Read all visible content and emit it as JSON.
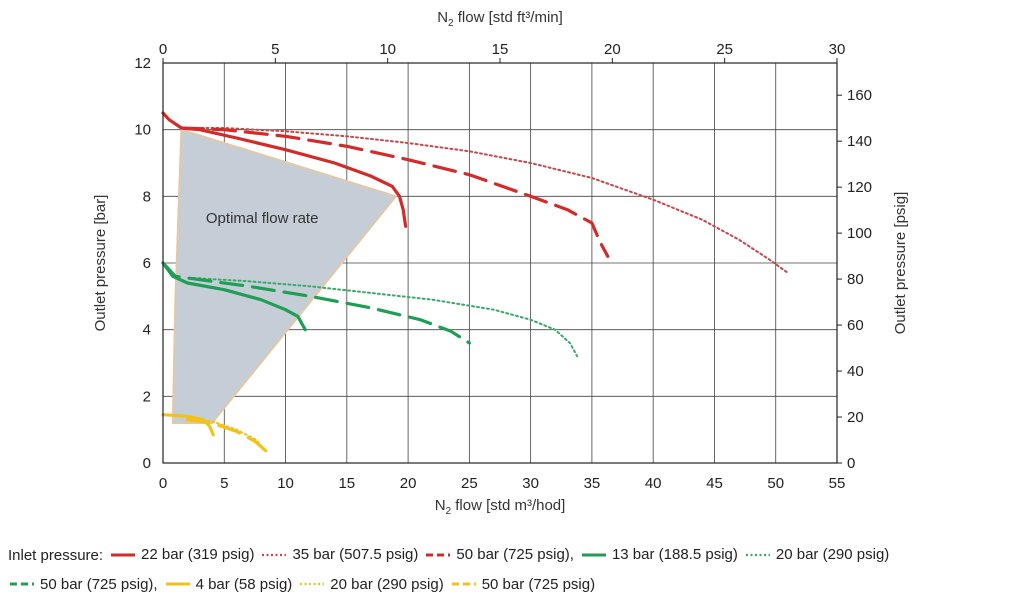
{
  "chart_data": {
    "type": "line",
    "top_axis": {
      "label_main": "N",
      "label_sub": "2",
      "label_rest": " flow [std ft³/min]",
      "range": [
        0,
        30
      ],
      "ticks": [
        "0",
        "5",
        "10",
        "15",
        "20",
        "25",
        "30"
      ]
    },
    "x_axis": {
      "label_main": "N",
      "label_sub": "2",
      "label_rest": " flow [std m³/hod]",
      "range": [
        0,
        55
      ],
      "ticks": [
        "0",
        "5",
        "10",
        "15",
        "20",
        "25",
        "30",
        "35",
        "40",
        "45",
        "50",
        "55"
      ]
    },
    "y_axis_left": {
      "label": "Outlet pressure [bar]",
      "range": [
        0,
        12
      ],
      "ticks": [
        "0",
        "2",
        "4",
        "6",
        "8",
        "10",
        "12"
      ]
    },
    "y_axis_right": {
      "label": "Outlet pressure [psig]",
      "range": [
        0,
        174
      ],
      "ticks": [
        "0",
        "20",
        "40",
        "60",
        "80",
        "100",
        "120",
        "140",
        "160"
      ]
    },
    "grid": true,
    "region": {
      "label": "Optimal flow rate",
      "color": "#c5ced6",
      "border": "#e3c8a8",
      "points": [
        [
          0.8,
          1.2
        ],
        [
          1.0,
          4.8
        ],
        [
          1.5,
          10.0
        ],
        [
          19.0,
          8.0
        ],
        [
          4.0,
          1.2
        ]
      ]
    },
    "series": [
      {
        "name": "22 bar (319 psig)",
        "color": "#d42a2a",
        "style": "solid",
        "x": [
          0,
          0.5,
          1.5,
          3,
          6,
          10,
          14,
          17,
          18.7,
          19.3,
          19.6,
          19.8
        ],
        "y": [
          10.5,
          10.3,
          10.05,
          10.0,
          9.75,
          9.4,
          9.0,
          8.6,
          8.3,
          8.0,
          7.6,
          7.1
        ]
      },
      {
        "name": "35 bar (507.5 psig)",
        "color": "#c8474a",
        "style": "dotted",
        "x": [
          1.5,
          5,
          10,
          15,
          20,
          25,
          30,
          35,
          40,
          44,
          47,
          49.5,
          51
        ],
        "y": [
          10.05,
          10.05,
          9.95,
          9.8,
          9.6,
          9.35,
          9.0,
          8.55,
          7.9,
          7.3,
          6.7,
          6.1,
          5.7
        ]
      },
      {
        "name": "50 bar (725 psig)",
        "color": "#d42a2a",
        "style": "dashed",
        "x": [
          1.5,
          5,
          10,
          15,
          20,
          25,
          30,
          33,
          35,
          35.7,
          36.3
        ],
        "y": [
          10.05,
          10.0,
          9.8,
          9.5,
          9.1,
          8.65,
          8.0,
          7.6,
          7.2,
          6.6,
          6.2
        ]
      },
      {
        "name": "13 bar (188.5 psig)",
        "color": "#1f9e55",
        "style": "solid",
        "x": [
          0,
          0.8,
          2,
          5,
          8,
          10,
          11,
          11.6
        ],
        "y": [
          6.0,
          5.6,
          5.4,
          5.2,
          4.9,
          4.6,
          4.4,
          4.0
        ]
      },
      {
        "name": "20 bar (290 psig)",
        "color": "#3aaa6a",
        "style": "dotted",
        "x": [
          2.5,
          7,
          12,
          17,
          22,
          27,
          30,
          32,
          33.2,
          33.8
        ],
        "y": [
          5.55,
          5.45,
          5.3,
          5.1,
          4.9,
          4.6,
          4.3,
          4.0,
          3.6,
          3.2
        ]
      },
      {
        "name": "50 bar (725 psig)",
        "color": "#1f9e55",
        "style": "dashed",
        "x": [
          0,
          1,
          3,
          7,
          12,
          17,
          21,
          23.5,
          25
        ],
        "y": [
          6.0,
          5.6,
          5.5,
          5.3,
          5.0,
          4.65,
          4.3,
          3.95,
          3.6
        ]
      },
      {
        "name": "4 bar (58 psig)",
        "color": "#f2c21b",
        "style": "solid",
        "x": [
          0,
          2,
          3.3,
          3.8,
          4.1
        ],
        "y": [
          1.45,
          1.4,
          1.3,
          1.1,
          0.85
        ]
      },
      {
        "name": "20 bar (290 psig)",
        "color": "#f2c21b",
        "style": "dotted",
        "x": [
          2,
          4,
          6,
          7.6,
          8.4
        ],
        "y": [
          1.35,
          1.25,
          1.0,
          0.7,
          0.35
        ]
      },
      {
        "name": "50 bar (725 psig)",
        "color": "#f2c21b",
        "style": "dashed",
        "x": [
          2,
          4,
          6,
          7.5,
          8.6
        ],
        "y": [
          1.3,
          1.2,
          0.95,
          0.65,
          0.3
        ]
      }
    ]
  },
  "legend": {
    "title": "Inlet pressure:",
    "items": [
      {
        "label": "22 bar (319 psig)",
        "color": "#d42a2a",
        "style": "solid"
      },
      {
        "label": "35 bar (507.5 psig)",
        "color": "#c8474a",
        "style": "dotted"
      },
      {
        "label": "50 bar (725 psig),",
        "color": "#d42a2a",
        "style": "dashed"
      },
      {
        "label": "13 bar (188.5 psig)",
        "color": "#1f9e55",
        "style": "solid"
      },
      {
        "label": "20 bar (290 psig)",
        "color": "#3aaa6a",
        "style": "dotted"
      },
      {
        "label": "50 bar (725 psig),",
        "color": "#1f9e55",
        "style": "dashed"
      },
      {
        "label": "4 bar (58 psig)",
        "color": "#f2c21b",
        "style": "solid"
      },
      {
        "label": "20 bar (290 psig)",
        "color": "#f2c21b",
        "style": "dotted"
      },
      {
        "label": "50 bar (725 psig)",
        "color": "#f2c21b",
        "style": "dashed"
      }
    ]
  }
}
